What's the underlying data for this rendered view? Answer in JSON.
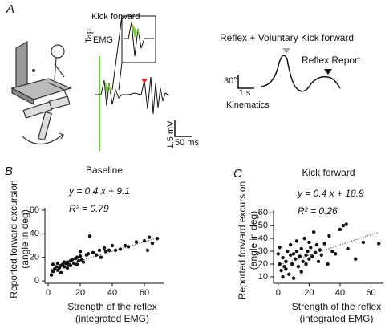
{
  "panel_a": {
    "label": "A",
    "inset_title": "Kick forward",
    "emg_label": "EMG",
    "tap_label": "Tap",
    "scale_y": "1.5 mV",
    "scale_x": "50 ms",
    "kinematics_title": "Reflex + Voluntary Kick forward",
    "reflex_report": "Reflex Report",
    "scale_deg": "30°",
    "scale_time": "1 s",
    "kinematics_label": "Kinematics"
  },
  "chart_data": [
    {
      "type": "scatter",
      "panel_label": "B",
      "title": "Baseline",
      "equation": "y = 0.4 x + 9.1",
      "r_squared": "R² = 0.79",
      "fit": {
        "slope": 0.4,
        "intercept": 9.1
      },
      "xlabel": [
        "Strength of the reflex",
        "(integrated EMG)"
      ],
      "ylabel": [
        "Reported forward excursion",
        "(angle in deg)"
      ],
      "xlim": [
        -2,
        72
      ],
      "ylim": [
        -2,
        62
      ],
      "xticks": [
        0,
        20,
        40,
        60
      ],
      "yticks": [
        0,
        20,
        40,
        60
      ],
      "color": "#111",
      "x": [
        2,
        3,
        4,
        5,
        6,
        7,
        8,
        9,
        10,
        11,
        12,
        13,
        14,
        15,
        16,
        17,
        18,
        19,
        20,
        21,
        22,
        24,
        25,
        26,
        28,
        30,
        32,
        33,
        35,
        36,
        38,
        40,
        42,
        45,
        48,
        50,
        55,
        60,
        62,
        63,
        65,
        68,
        3,
        6,
        8,
        10,
        12,
        14,
        18,
        20
      ],
      "y": [
        5,
        8,
        10,
        12,
        9,
        11,
        13,
        14,
        12,
        15,
        16,
        14,
        17,
        18,
        15,
        19,
        20,
        17,
        21,
        18,
        16,
        22,
        23,
        38,
        24,
        22,
        26,
        20,
        28,
        25,
        26,
        30,
        26,
        27,
        30,
        29,
        33,
        34,
        26,
        37,
        32,
        36,
        14,
        15,
        7,
        16,
        11,
        13,
        14,
        25
      ]
    },
    {
      "type": "scatter",
      "panel_label": "C",
      "title": "Kick forward",
      "equation": "y = 0.4 x + 18.9",
      "r_squared": "R² = 0.26",
      "fit": {
        "slope": 0.4,
        "intercept": 18.9
      },
      "xlabel": [
        "Strength of the reflex",
        "(integrated EMG)"
      ],
      "ylabel": [
        "Reported forward excursion",
        "(angle in deg)"
      ],
      "xlim": [
        -3,
        68
      ],
      "ylim": [
        5,
        62
      ],
      "xticks": [
        0,
        20,
        40,
        60
      ],
      "yticks": [
        10,
        20,
        30,
        40,
        50,
        60
      ],
      "color": "#111",
      "x": [
        1,
        2,
        3,
        4,
        5,
        6,
        7,
        8,
        9,
        10,
        11,
        12,
        13,
        14,
        15,
        16,
        17,
        18,
        19,
        20,
        21,
        22,
        23,
        24,
        25,
        26,
        27,
        28,
        30,
        32,
        33,
        35,
        37,
        40,
        42,
        44,
        45,
        50,
        55,
        65,
        3,
        5,
        8,
        12,
        15,
        18,
        20,
        0,
        1,
        10
      ],
      "y": [
        20,
        15,
        25,
        18,
        22,
        30,
        12,
        35,
        20,
        28,
        24,
        38,
        18,
        26,
        32,
        22,
        40,
        27,
        30,
        24,
        33,
        26,
        45,
        29,
        35,
        22,
        31,
        27,
        36,
        20,
        42,
        30,
        28,
        47,
        50,
        51,
        32,
        24,
        37,
        36,
        10,
        16,
        27,
        30,
        14,
        20,
        37,
        28,
        33,
        9
      ]
    }
  ]
}
